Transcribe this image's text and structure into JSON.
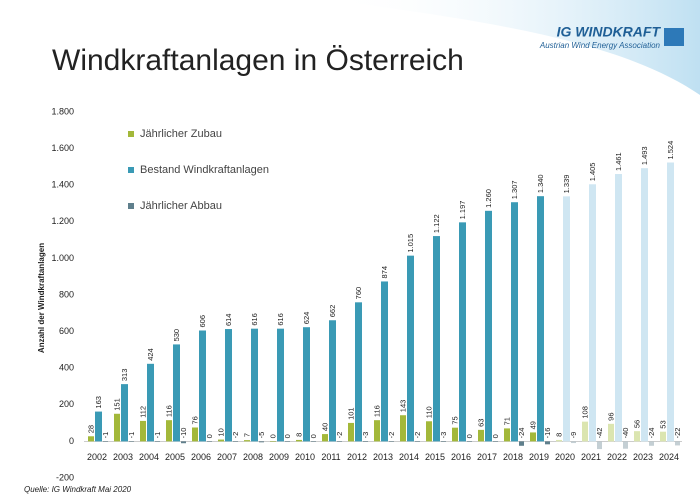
{
  "chart_data": {
    "type": "bar",
    "title": "Windkraftanlagen in Österreich",
    "logo_title": "IG WINDKRAFT",
    "logo_subtitle": "Austrian Wind Energy Association",
    "y_label": "Anzahl der Windkraftanlagen",
    "source": "Quelle: IG Windkraft Mai 2020",
    "categories": [
      "2002",
      "2003",
      "2004",
      "2005",
      "2006",
      "2007",
      "2008",
      "2009",
      "2010",
      "2011",
      "2012",
      "2013",
      "2014",
      "2015",
      "2016",
      "2017",
      "2018",
      "2019",
      "2020",
      "2021",
      "2022",
      "2023",
      "2024"
    ],
    "series": [
      {
        "name": "Jährlicher Zubau",
        "color": "#a3b83a",
        "colors": [
          "#a3b83a",
          "#a3b83a",
          "#a3b83a",
          "#a3b83a",
          "#a3b83a",
          "#a3b83a",
          "#a3b83a",
          "#a3b83a",
          "#a3b83a",
          "#a3b83a",
          "#a3b83a",
          "#a3b83a",
          "#a3b83a",
          "#a3b83a",
          "#a3b83a",
          "#a3b83a",
          "#a3b83a",
          "#a3b83a",
          "#dbe5b0",
          "#dbe5b0",
          "#dbe5b0",
          "#dbe5b0",
          "#dbe5b0"
        ],
        "values": [
          28,
          151,
          112,
          116,
          76,
          10,
          7,
          0,
          8,
          40,
          101,
          116,
          143,
          110,
          75,
          63,
          71,
          49,
          8,
          108,
          96,
          56,
          53
        ]
      },
      {
        "name": "Bestand Windkraftanlagen",
        "color": "#3a9ab5",
        "colors": [
          "#3a9ab5",
          "#3a9ab5",
          "#3a9ab5",
          "#3a9ab5",
          "#3a9ab5",
          "#3a9ab5",
          "#3a9ab5",
          "#3a9ab5",
          "#3a9ab5",
          "#3a9ab5",
          "#3a9ab5",
          "#3a9ab5",
          "#3a9ab5",
          "#3a9ab5",
          "#3a9ab5",
          "#3a9ab5",
          "#3a9ab5",
          "#3a9ab5",
          "#cfe6f2",
          "#cfe6f2",
          "#cfe6f2",
          "#cfe6f2",
          "#cfe6f2"
        ],
        "values": [
          163,
          313,
          424,
          530,
          606,
          614,
          616,
          616,
          624,
          662,
          760,
          874,
          1015,
          1122,
          1197,
          1260,
          1307,
          1340,
          1339,
          1405,
          1461,
          1493,
          1524
        ],
        "value_labels": [
          "163",
          "313",
          "424",
          "530",
          "606",
          "614",
          "616",
          "616",
          "624",
          "662",
          "760",
          "874",
          "1.015",
          "1.122",
          "1.197",
          "1.260",
          "1.307",
          "1.340",
          "1.339",
          "1.405",
          "1.461",
          "1.493",
          "1.524"
        ]
      },
      {
        "name": "Jährlicher Abbau",
        "color": "#5f7f8c",
        "colors": [
          "#5f7f8c",
          "#5f7f8c",
          "#5f7f8c",
          "#5f7f8c",
          "#5f7f8c",
          "#5f7f8c",
          "#5f7f8c",
          "#5f7f8c",
          "#5f7f8c",
          "#5f7f8c",
          "#5f7f8c",
          "#5f7f8c",
          "#5f7f8c",
          "#5f7f8c",
          "#5f7f8c",
          "#5f7f8c",
          "#5f7f8c",
          "#5f7f8c",
          "#c4cfd4",
          "#c4cfd4",
          "#c4cfd4",
          "#c4cfd4",
          "#c4cfd4"
        ],
        "values": [
          -1,
          -1,
          -1,
          -10,
          0,
          -2,
          -5,
          0,
          0,
          -2,
          -3,
          -2,
          -2,
          -3,
          0,
          0,
          -24,
          -16,
          -9,
          -42,
          -40,
          -24,
          -22
        ]
      }
    ],
    "ylim": [
      -200,
      1800
    ],
    "yticks": [
      -200,
      0,
      200,
      400,
      600,
      800,
      {
        "value": 1000,
        "label": "1.000"
      },
      {
        "value": 1200,
        "label": "1.200"
      },
      {
        "value": 1400,
        "label": "1.400"
      },
      {
        "value": 1600,
        "label": "1.600"
      },
      {
        "value": 1800,
        "label": "1.800"
      }
    ],
    "legend": "top-left"
  }
}
